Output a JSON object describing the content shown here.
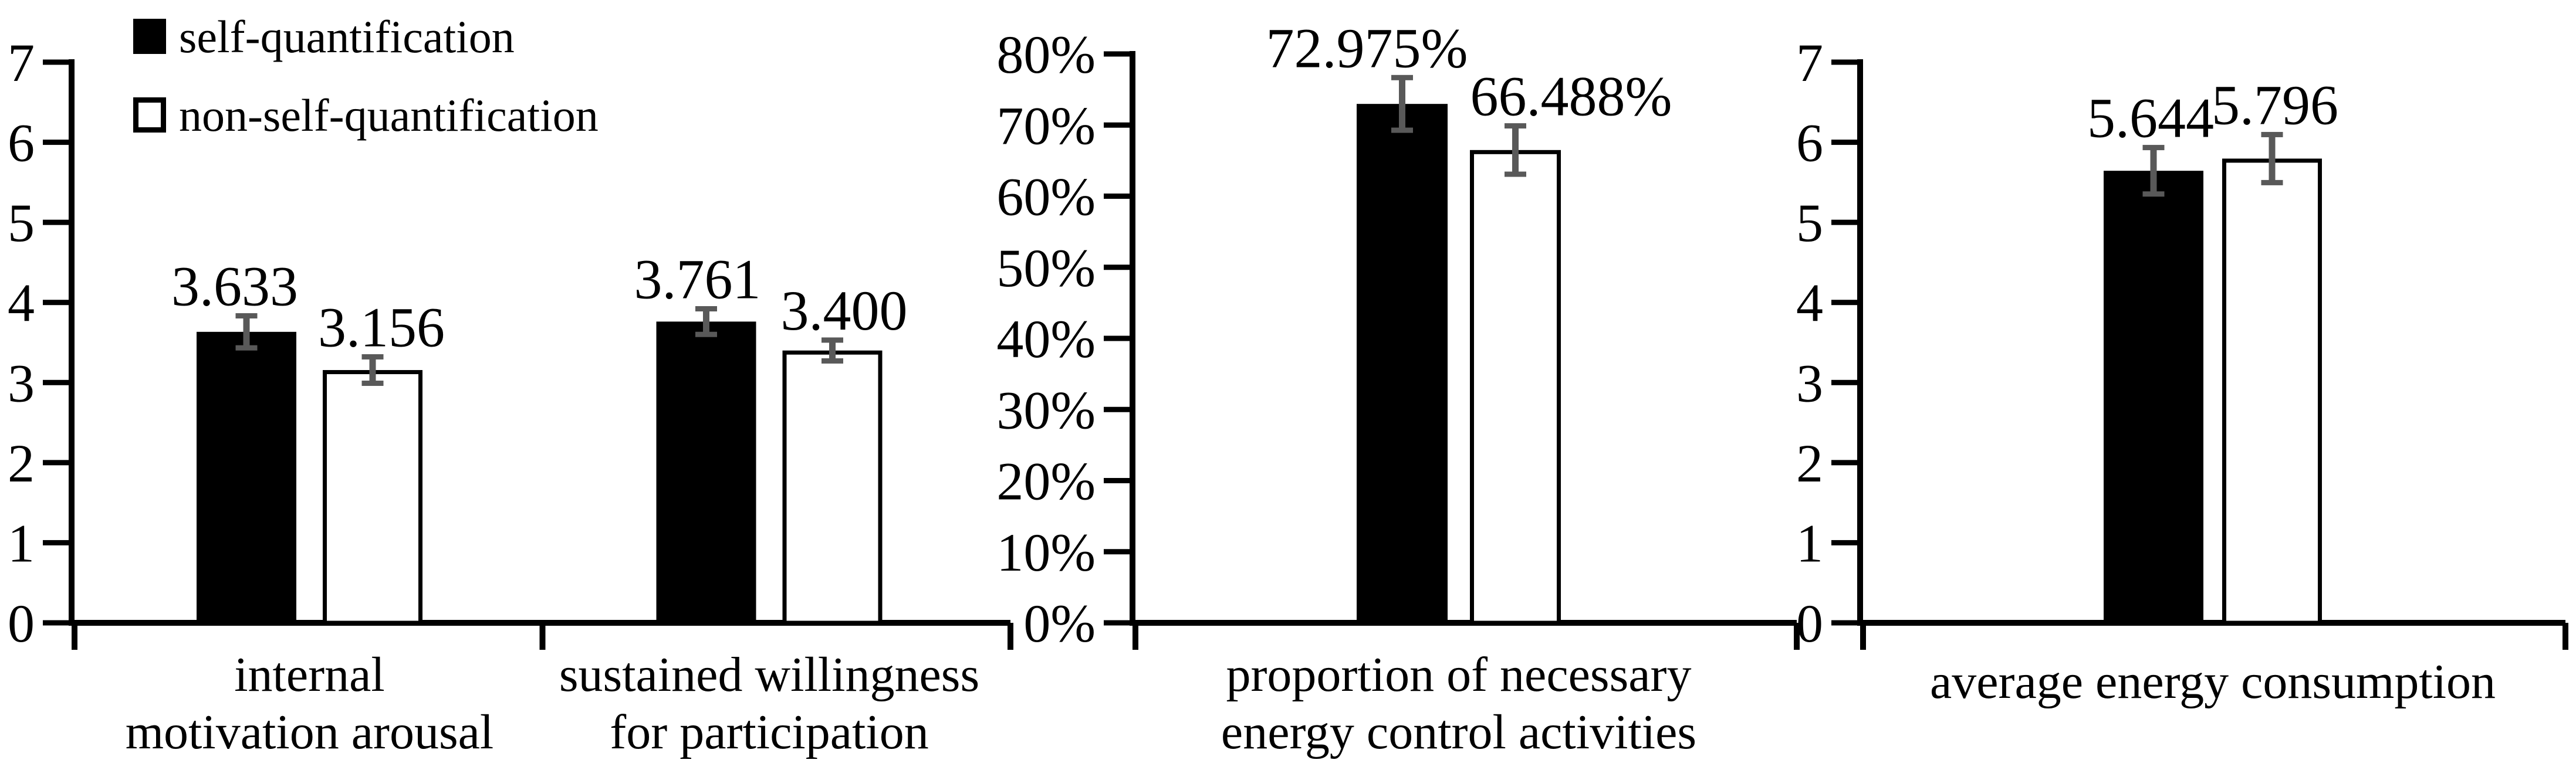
{
  "figure": {
    "background": "#ffffff",
    "description": "Three-panel bar chart comparing self-quantification vs non-self-quantification groups with error bars"
  },
  "colors": {
    "self_fill": "#000000",
    "non_self_fill": "#ffffff",
    "bar_stroke": "#000000",
    "error_bar": "#595959",
    "axis": "#000000",
    "text": "#000000",
    "background": "#ffffff"
  },
  "legend": {
    "items": [
      {
        "label": "self-quantification",
        "swatch": "filled-black-square"
      },
      {
        "label": "non-self-quantification",
        "swatch": "open-white-square"
      }
    ],
    "position": "top-left"
  },
  "chart_data": [
    {
      "type": "bar",
      "panel_id": "likert-motivation-willingness",
      "ylim": [
        0,
        7
      ],
      "ytick_step": 1,
      "ytick_labels": [
        "0",
        "1",
        "2",
        "3",
        "4",
        "5",
        "6",
        "7"
      ],
      "grid": false,
      "categories": [
        [
          "internal",
          "motivation arousal"
        ],
        [
          "sustained willingness",
          "for participation"
        ]
      ],
      "series": [
        {
          "name": "self-quantification",
          "values": [
            3.633,
            3.761
          ],
          "errors_est": [
            0.2,
            0.16
          ],
          "value_labels": [
            "3.633",
            "3.761"
          ]
        },
        {
          "name": "non-self-quantification",
          "values": [
            3.156,
            3.4
          ],
          "errors_est": [
            0.165,
            0.13
          ],
          "value_labels": [
            "3.156",
            "3.400"
          ]
        }
      ]
    },
    {
      "type": "bar",
      "panel_id": "percent-energy-control",
      "ylim": [
        0,
        80
      ],
      "ytick_step": 10,
      "ytick_labels": [
        "0%",
        "10%",
        "20%",
        "30%",
        "40%",
        "50%",
        "60%",
        "70%",
        "80%"
      ],
      "grid": false,
      "categories": [
        [
          "proportion of necessary",
          "energy control activities"
        ]
      ],
      "series": [
        {
          "name": "self-quantification",
          "values": [
            72.975
          ],
          "errors_est": [
            3.7
          ],
          "value_labels": [
            "72.975%"
          ]
        },
        {
          "name": "non-self-quantification",
          "values": [
            66.488
          ],
          "errors_est": [
            3.4
          ],
          "value_labels": [
            "66.488%"
          ]
        }
      ]
    },
    {
      "type": "bar",
      "panel_id": "likert-energy-consumption",
      "ylim": [
        0,
        7
      ],
      "ytick_step": 1,
      "ytick_labels": [
        "0",
        "1",
        "2",
        "3",
        "4",
        "5",
        "6",
        "7"
      ],
      "grid": false,
      "categories": [
        [
          "average energy consumption"
        ]
      ],
      "series": [
        {
          "name": "self-quantification",
          "values": [
            5.644
          ],
          "errors_est": [
            0.29
          ],
          "value_labels": [
            "5.644"
          ]
        },
        {
          "name": "non-self-quantification",
          "values": [
            5.796
          ],
          "errors_est": [
            0.3
          ],
          "value_labels": [
            "5.796"
          ]
        }
      ]
    }
  ]
}
